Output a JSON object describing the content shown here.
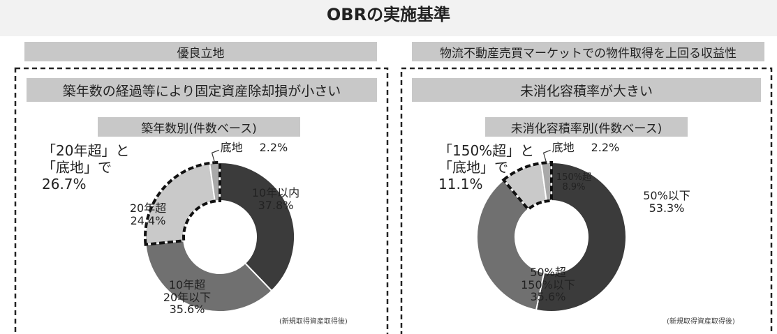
{
  "title": "OBRの実施基準",
  "sections": [
    {
      "heading": "優良立地",
      "subheading": "築年数の経過等により固定資産除却損が小さい"
    },
    {
      "heading": "物流不動産売買マーケットでの物件取得を上回る収益性",
      "subheading": "未消化容積率が大きい"
    }
  ],
  "chart_data": [
    {
      "type": "pie",
      "title": "築年数別(件数ベース)",
      "categories": [
        "10年以内",
        "10年超\n20年以下",
        "20年超",
        "底地"
      ],
      "values": [
        37.8,
        35.6,
        24.4,
        2.2
      ],
      "value_labels": [
        "37.8%",
        "35.6%",
        "24.4%",
        "2.2%"
      ],
      "colors": [
        "#3b3b3b",
        "#707070",
        "#c9c9c9",
        "#a9a9a9"
      ],
      "annotation": [
        "「20年超」と",
        "「底地」で",
        "26.7%"
      ],
      "note": "(新規取得資産取得後)"
    },
    {
      "type": "pie",
      "title": "未消化容積率別(件数ベース)",
      "categories": [
        "50%以下",
        "50%超\n150%以下",
        "150%超",
        "底地"
      ],
      "values": [
        53.3,
        35.6,
        8.9,
        2.2
      ],
      "value_labels": [
        "53.3%",
        "35.6%",
        "8.9%",
        "2.2%"
      ],
      "colors": [
        "#3b3b3b",
        "#707070",
        "#c9c9c9",
        "#a9a9a9"
      ],
      "annotation": [
        "「150%超」と",
        "「底地」で",
        "11.1%"
      ],
      "note": "(新規取得資産取得後)"
    }
  ]
}
